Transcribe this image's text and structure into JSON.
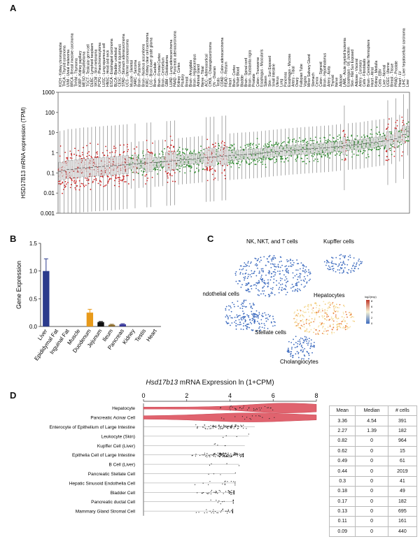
{
  "panel_labels": {
    "a": "A",
    "b": "B",
    "c": "C",
    "d": "D"
  },
  "panel_a": {
    "ylabel": "HSD17B13 mRNA expression (TPM)",
    "yticks": [
      "1000",
      "100",
      "10",
      "1",
      "0.1",
      "0.01",
      "0.001"
    ],
    "categories": [
      "KICH - Kidney chromophobe",
      "THCA - Thyroid carcinoma",
      "UVM - Uveal melanoma",
      "BRCA - Breast invasive carcinoma",
      "THYM - Thymoma",
      "KIRP - Kidney papillary",
      "MESO - Mesothelioma",
      "TGCT - Testicular germ cell",
      "DLBC - Lymphoid neoplasm",
      "SKCM - Skin melanoma",
      "PCPG - Pheochromocytoma",
      "LUSC - Lung squamous cell",
      "HNSC - Head and neck",
      "ESCA - Esophageal carcinoma",
      "BLCA - Bladder urothelial",
      "CESC - Cervical squamous",
      "STAD - Stomach adenocarcinoma",
      "UCS - Uterine carcinosarcoma",
      "Muscle - Skeletal",
      "SARC - Sarcoma",
      "Brain - Putamen",
      "Brain - Nucleus accumbens",
      "KIRC - Kidney clear cell carcinoma",
      "LGG - Brain lower grade glioma",
      "Brain - Caudate",
      "Brain - Frontal Cortex",
      "Brain - Cerebellum",
      "GBM - Glioblastoma",
      "LUAD - Lung adenocarcinoma",
      "PAAD - Pancreatic adenocarcinoma",
      "Kidney - Cortex",
      "Pituitary",
      "Breast",
      "Brain - Amygdala",
      "Brain - Hippocampus",
      "Adrenal Gland",
      "Nerve - Tibial",
      "ACC - Adrenocortical",
      "CHOL - Cholangiocarcinoma",
      "OV - Ovarian",
      "Testis",
      "COAD - Colon adenocarcinoma",
      "READ - Rectum",
      "Heart",
      "Brain - Cortex",
      "Whole Blood",
      "Bladder",
      "Brain - Spinal cord",
      "Brain - Substantia nigra",
      "Prostate",
      "Colon - Transverse",
      "Esophagus - Muscularis",
      "Spleen",
      "Skin - Sun Exposed",
      "Small Intestine",
      "Uterus",
      "Lung",
      "Pancreas",
      "Esophagus - Mucosa",
      "Artery - Tibial",
      "Ovary",
      "Fallopian Tube",
      "Vagina",
      "Minor Salivary Gland",
      "Stomach",
      "Cervix",
      "Colon - Sigmoid",
      "Brain - Hypothalamus",
      "Artery - Aorta",
      "Thyroid",
      "Nerve",
      "Adipose",
      "LAML - Acute myeloid leukemia",
      "Esophagus - GE Junction",
      "Skin - Not Sun Exposed",
      "Adipose - Visceral",
      "Artery - Coronary",
      "Cells - Fibroblasts",
      "Brain - Cerebellar Hemisphere",
      "Heart - Atrial",
      "Kidney - Medulla",
      "Cells - EBV",
      "Liver - Normal",
      "UCEC - Uterine",
      "Breast - Tissue",
      "PRAD - Prostate",
      "Heart - LV",
      "LIHC - Liver hepatocellular carcinoma",
      "Liver"
    ],
    "chart_data": {
      "type": "box",
      "title": "",
      "xlabel": "",
      "ylabel": "HSD17B13 mRNA expression (TPM)",
      "y_scale": "log",
      "ylim": [
        0.001,
        1000
      ],
      "medians": [
        0.12,
        0.13,
        0.15,
        0.15,
        0.16,
        0.17,
        0.18,
        0.18,
        0.19,
        0.2,
        0.2,
        0.21,
        0.22,
        0.22,
        0.23,
        0.24,
        0.25,
        0.26,
        0.27,
        0.28,
        0.29,
        0.3,
        0.31,
        0.32,
        0.33,
        0.34,
        0.36,
        0.37,
        0.38,
        0.4,
        0.42,
        0.44,
        0.46,
        0.48,
        0.5,
        0.52,
        0.55,
        0.58,
        0.6,
        0.62,
        0.65,
        0.68,
        0.7,
        0.72,
        0.75,
        0.78,
        0.8,
        0.82,
        0.85,
        0.88,
        0.9,
        0.95,
        1.0,
        1.05,
        1.1,
        1.15,
        1.2,
        1.25,
        1.3,
        1.35,
        1.4,
        1.45,
        1.5,
        1.55,
        1.6,
        1.65,
        1.7,
        1.75,
        1.8,
        1.9,
        2.0,
        2.1,
        2.2,
        2.3,
        2.4,
        2.5,
        2.6,
        2.8,
        3.0,
        3.2,
        3.4,
        3.6,
        3.8,
        4.0,
        4.5,
        5.0,
        6.0,
        8.0,
        12.0
      ],
      "series_colors": {
        "tumor": "#cc2222",
        "normal": "#2e8b2e"
      }
    }
  },
  "panel_b": {
    "chart_data": {
      "type": "bar",
      "title": "",
      "xlabel": "",
      "ylabel": "Gene Expression",
      "categories": [
        "Liver",
        "Epididymal Fat",
        "Inguinal Fat",
        "Muscle",
        "Duodenum",
        "Jejunum",
        "Ileum",
        "Pancreas",
        "Kidney",
        "Testis",
        "Heart"
      ],
      "values": [
        1.0,
        0.0,
        0.0,
        0.0,
        0.25,
        0.08,
        0.03,
        0.04,
        0.0,
        0.0,
        0.0
      ],
      "errors": [
        0.22,
        0.0,
        0.0,
        0.0,
        0.06,
        0.01,
        0.01,
        0.01,
        0.0,
        0.0,
        0.0
      ],
      "colors": [
        "#2b3b8c",
        "#2b3b8c",
        "#2b3b8c",
        "#2b3b8c",
        "#e89a1a",
        "#111111",
        "#8b6a2a",
        "#3a3a9c",
        "#3a3a9c",
        "#3a3a9c",
        "#3a3a9c"
      ],
      "ylim": [
        0,
        1.5
      ],
      "yticks": [
        "0.0",
        "0.5",
        "1.0",
        "1.5"
      ]
    }
  },
  "panel_c": {
    "labels": [
      "NK, NKT, and T cells",
      "Kupffer cells",
      "Endothelial cells",
      "Hepatocytes",
      "Stellate cells",
      "Cholangiocytes"
    ],
    "legend_title": "log2(exp)",
    "legend_ticks": [
      "8",
      "6",
      "4",
      "2",
      "0"
    ]
  },
  "panel_d": {
    "title_gene": "Hsd17b13",
    "title_rest": " mRNA Expression ln (1+CPM)",
    "xticks": [
      "0",
      "2",
      "4",
      "6",
      "8"
    ],
    "headers": [
      "Mean",
      "Median",
      "# cells"
    ],
    "chart_data": {
      "type": "violin",
      "title": "Hsd17b13 mRNA Expression ln (1+CPM)",
      "xlim": [
        0,
        8
      ],
      "rows": [
        {
          "cell": "Hepatocyte",
          "mean": "3.36",
          "median": "4.54",
          "n": "391"
        },
        {
          "cell": "Pancreatic Acinar Cell",
          "mean": "2.27",
          "median": "1.39",
          "n": "182"
        },
        {
          "cell": "Enterocyte of Epithelium of Large Intestine",
          "mean": "0.82",
          "median": "0",
          "n": "964"
        },
        {
          "cell": "Leukocyte (Skin)",
          "mean": "0.62",
          "median": "0",
          "n": "15"
        },
        {
          "cell": "Kupffer Cell (Liver)",
          "mean": "0.49",
          "median": "0",
          "n": "61"
        },
        {
          "cell": "Epithelia Cell of Large Intestine",
          "mean": "0.44",
          "median": "0",
          "n": "2019"
        },
        {
          "cell": "B Cell (Liver)",
          "mean": "0.3",
          "median": "0",
          "n": "41"
        },
        {
          "cell": "Pancreatic Stellate Cell",
          "mean": "0.18",
          "median": "0",
          "n": "49"
        },
        {
          "cell": "Hepatic Sinusoid Endothelia Cell",
          "mean": "0.17",
          "median": "0",
          "n": "182"
        },
        {
          "cell": "Bladder Cell",
          "mean": "0.13",
          "median": "0",
          "n": "695"
        },
        {
          "cell": "Pancreatic ductal Cell",
          "mean": "0.11",
          "median": "0",
          "n": "161"
        },
        {
          "cell": "Mammary Gland Stromal Cell",
          "mean": "0.09",
          "median": "0",
          "n": "440"
        }
      ]
    }
  }
}
